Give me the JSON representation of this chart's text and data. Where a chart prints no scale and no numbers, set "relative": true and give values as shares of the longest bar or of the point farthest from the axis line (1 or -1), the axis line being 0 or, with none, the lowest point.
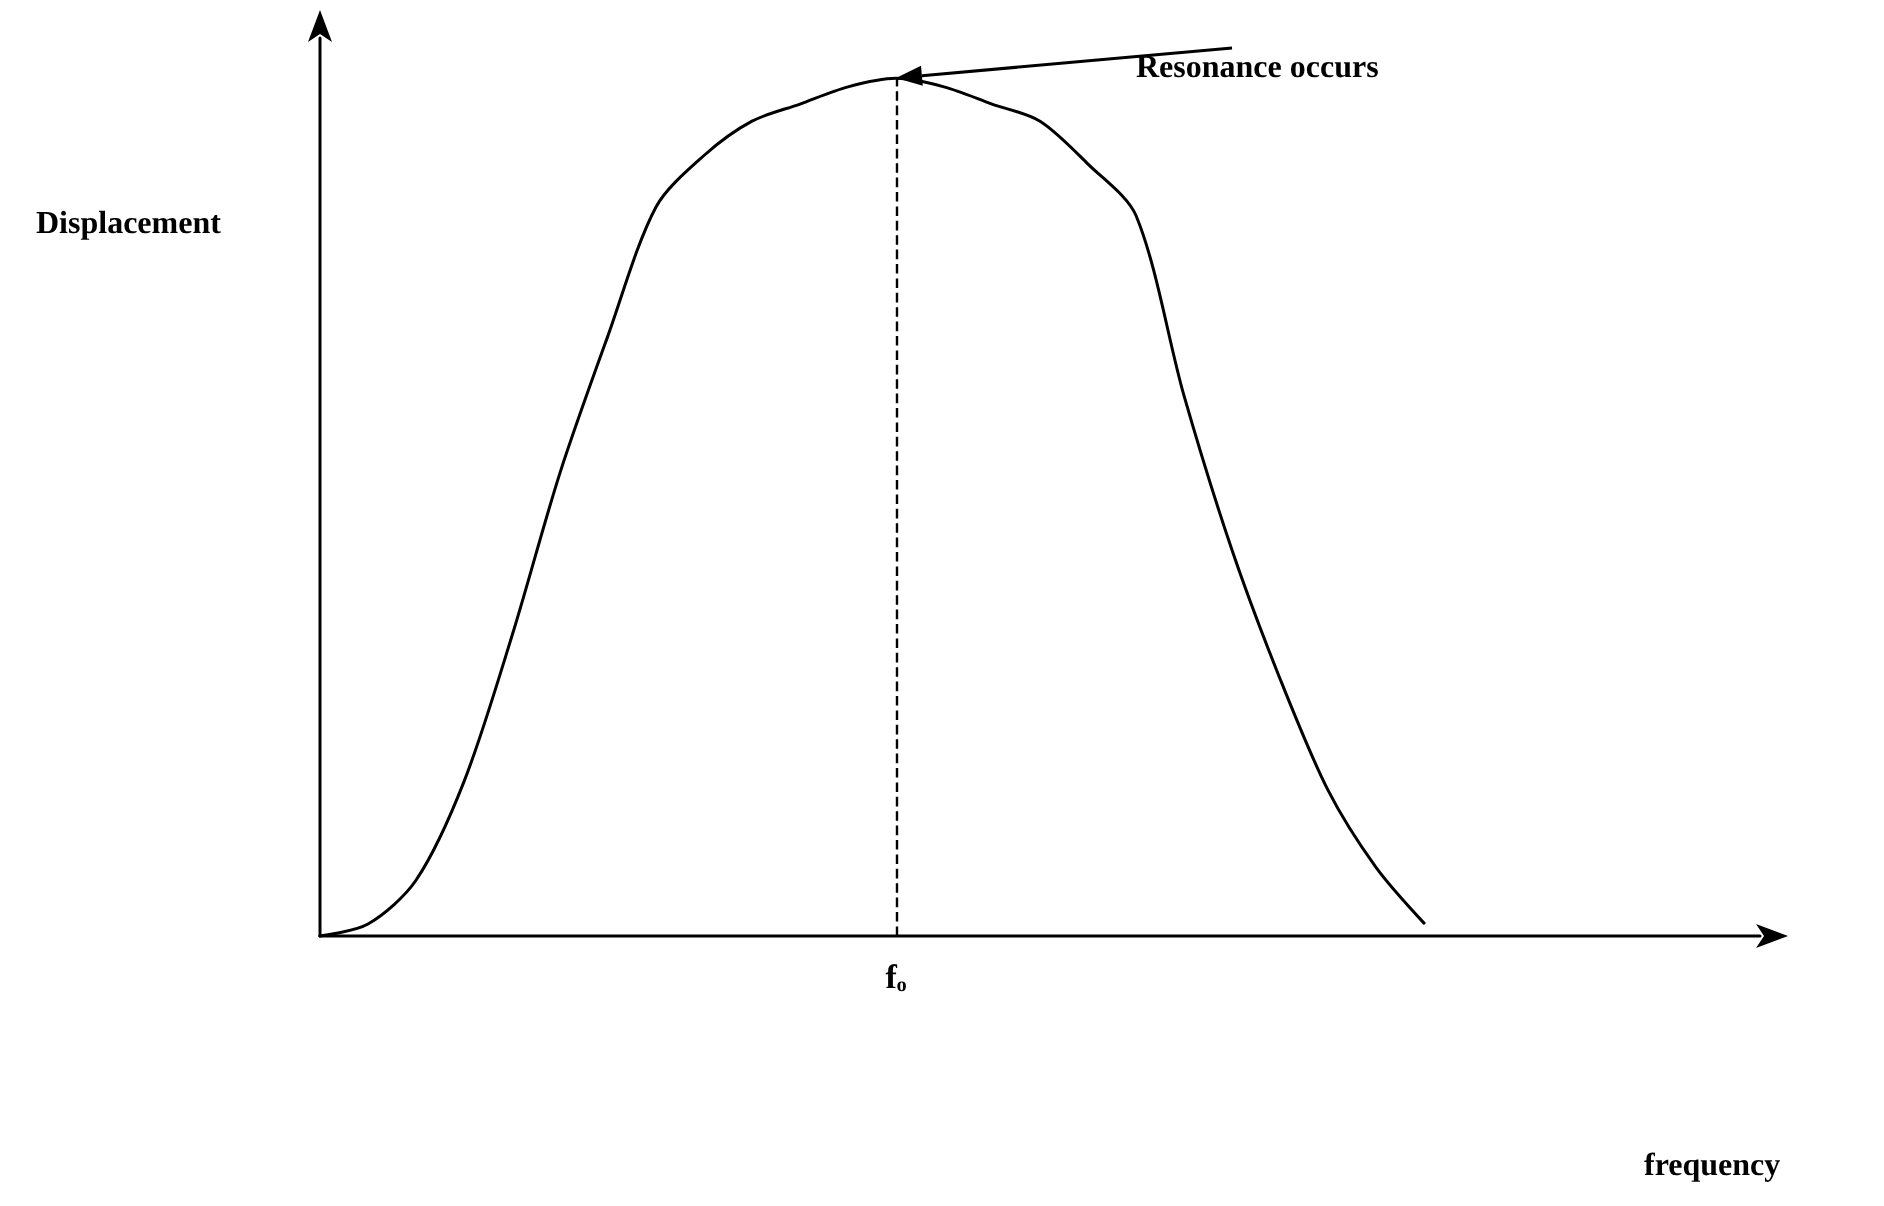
{
  "chart_data": {
    "type": "line",
    "relative": true,
    "ylabel": "Displacement",
    "categories": [
      null,
      null,
      null,
      null,
      null,
      null,
      null,
      null,
      null,
      null,
      null,
      null,
      null,
      null,
      null,
      null,
      null,
      null,
      null,
      null,
      null,
      null,
      null,
      null,
      null,
      null,
      null,
      null,
      null,
      null,
      null
    ],
    "series": [
      {
        "color": "#000000",
        "values": [
          0,
          0.014,
          0.065,
          0.18,
          0.35,
          0.54,
          0.7,
          0.85,
          0.91,
          0.95,
          0.97,
          0.99,
          1,
          0.99,
          0.97,
          0.95,
          0.9,
          0.84,
          0.63,
          0.45,
          0.3,
          0.17,
          0.08,
          0.015,
          null,
          null,
          null,
          null,
          null,
          null,
          null
        ]
      }
    ],
    "annotations": [
      "Resonance occurs",
      "fₒ",
      "frequency"
    ],
    "marker": "none",
    "line_style": "solid",
    "grid": false
  }
}
